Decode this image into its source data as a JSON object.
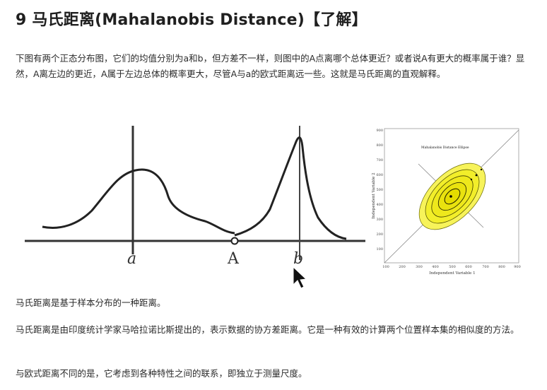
{
  "title": "9 马氏距离(Mahalanobis Distance)【了解】",
  "paragraphs": {
    "intro": "下图有两个正态分布图，它们的均值分别为a和b，但方差不一样，则图中的A点离哪个总体更近？或者说A有更大的概率属于谁？显然，A离左边的更近，A属于左边总体的概率更大，尽管A与a的欧式距离远一些。这就是马氏距离的直观解释。",
    "definition": "马氏距离是基于样本分布的一种距离。",
    "origin": "马氏距离是由印度统计学家马哈拉诺比斯提出的，表示数据的协方差距离。它是一种有效的计算两个位置样本集的相似度的方法。",
    "difference": "与欧式距离不同的是，它考虑到各种特性之间的联系，即独立于测量尺度。"
  },
  "left_figure": {
    "labels": {
      "a": "a",
      "A": "A",
      "b": "b"
    }
  },
  "right_figure": {
    "title": "Mahalanobis Distance Ellipse",
    "xlabel": "Independent Variable 1",
    "ylabel": "Independent Variable 2",
    "x_ticks": [
      "100",
      "200",
      "300",
      "400",
      "500",
      "600",
      "700",
      "800",
      "900"
    ],
    "y_ticks": [
      "100",
      "200",
      "300",
      "400",
      "500",
      "600",
      "700",
      "800",
      "900"
    ],
    "colors": {
      "fill": "#f2ee2a",
      "ring": "#3a3a00"
    }
  }
}
